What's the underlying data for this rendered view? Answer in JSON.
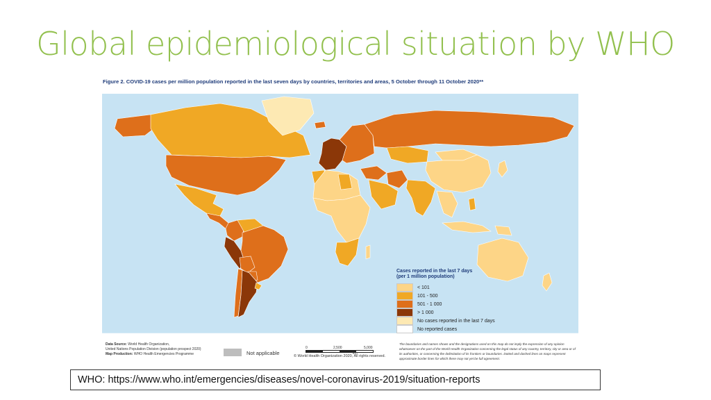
{
  "slide": {
    "title": "Global epidemiological situation by WHO",
    "source_text": "WHO: https://www.who.int/emergencies/diseases/novel-coronavirus-2019/situation-reports"
  },
  "figure": {
    "caption": "Figure 2. COVID-19 cases per million population reported in the last seven days by countries, territories and areas, 5 October  through 11 October 2020**"
  },
  "legend": {
    "title_line1": "Cases reported in the last 7 days",
    "title_line2": "(per 1 million population)",
    "items": [
      {
        "label": "< 101",
        "color": "#fdd587"
      },
      {
        "label": "101 - 500",
        "color": "#f0a825"
      },
      {
        "label": "501 - 1 000",
        "color": "#de6f1b"
      },
      {
        "label": "> 1 000",
        "color": "#8b3708"
      },
      {
        "label": "No cases reported in the last 7 days",
        "color": "#fde9b3"
      },
      {
        "label": "No reported cases",
        "color": "#ffffff"
      }
    ]
  },
  "colors": {
    "ocean": "#c7e3f3",
    "lt101": "#fdd587",
    "c101_500": "#f0a825",
    "c501_1000": "#de6f1b",
    "gt1000": "#8b3708",
    "no_cases_7d": "#fde9b3",
    "no_reported": "#ffffff",
    "not_applicable": "#bdbdbd",
    "title": "#92c04e"
  },
  "map": {
    "regions": [
      {
        "name": "Canada",
        "cat": "c101_500"
      },
      {
        "name": "Alaska",
        "cat": "c501_1000"
      },
      {
        "name": "Greenland",
        "cat": "no_cases_7d"
      },
      {
        "name": "United States of America",
        "cat": "c501_1000"
      },
      {
        "name": "Mexico",
        "cat": "c101_500"
      },
      {
        "name": "Central America",
        "cat": "c501_1000"
      },
      {
        "name": "Colombia",
        "cat": "c501_1000"
      },
      {
        "name": "Venezuela",
        "cat": "c101_500"
      },
      {
        "name": "Brazil",
        "cat": "c501_1000"
      },
      {
        "name": "Peru",
        "cat": "gt1000"
      },
      {
        "name": "Bolivia",
        "cat": "c501_1000"
      },
      {
        "name": "Argentina",
        "cat": "gt1000"
      },
      {
        "name": "Chile",
        "cat": "c501_1000"
      },
      {
        "name": "Paraguay",
        "cat": "c501_1000"
      },
      {
        "name": "Uruguay",
        "cat": "c101_500"
      },
      {
        "name": "Iceland",
        "cat": "c501_1000"
      },
      {
        "name": "Western Europe",
        "cat": "gt1000"
      },
      {
        "name": "Eastern Europe",
        "cat": "c501_1000"
      },
      {
        "name": "Russian Federation",
        "cat": "c501_1000"
      },
      {
        "name": "Kazakhstan",
        "cat": "c101_500"
      },
      {
        "name": "Middle East",
        "cat": "c501_1000"
      },
      {
        "name": "Saudi Arabia",
        "cat": "c101_500"
      },
      {
        "name": "Iran",
        "cat": "c501_1000"
      },
      {
        "name": "India",
        "cat": "c101_500"
      },
      {
        "name": "China",
        "cat": "lt101"
      },
      {
        "name": "Mongolia",
        "cat": "lt101"
      },
      {
        "name": "Japan",
        "cat": "lt101"
      },
      {
        "name": "Southeast Asia",
        "cat": "lt101"
      },
      {
        "name": "Philippines",
        "cat": "c101_500"
      },
      {
        "name": "Indonesia",
        "cat": "lt101"
      },
      {
        "name": "Papua New Guinea",
        "cat": "lt101"
      },
      {
        "name": "Australia",
        "cat": "lt101"
      },
      {
        "name": "New Zealand",
        "cat": "lt101"
      },
      {
        "name": "North Africa",
        "cat": "lt101"
      },
      {
        "name": "Morocco",
        "cat": "c101_500"
      },
      {
        "name": "Libya",
        "cat": "c101_500"
      },
      {
        "name": "Sub-Saharan Africa",
        "cat": "lt101"
      },
      {
        "name": "Southern Africa",
        "cat": "c101_500"
      },
      {
        "name": "Madagascar",
        "cat": "lt101"
      },
      {
        "name": "Antarctica",
        "cat": "no_reported"
      }
    ],
    "footer": {
      "data_source_label": "Data Source:",
      "data_source_text": "World Health Organization,",
      "data_source_text2": "United Nations Population Division (population prospect 2020)",
      "map_production_label": "Map Production:",
      "map_production_text": "WHO Health Emergencies Programme",
      "not_applicable": "Not applicable",
      "scale_0": "0",
      "scale_mid": "2,500",
      "scale_max": "5,000",
      "scale_unit": "km",
      "copyright": "© World Health Organization  2020,  All rights reserved.",
      "disclaimer": "The boundaries and names shown and the designations used on this map do not imply the expression of any opinion whatsoever on the part of the World Health Organization concerning the legal status of any country, territory, city or area or of its authorities, or concerning the delimitation of its frontiers or boundaries. Dotted and dashed lines on maps represent approximate border lines for which there may not yet be full agreement."
    }
  }
}
